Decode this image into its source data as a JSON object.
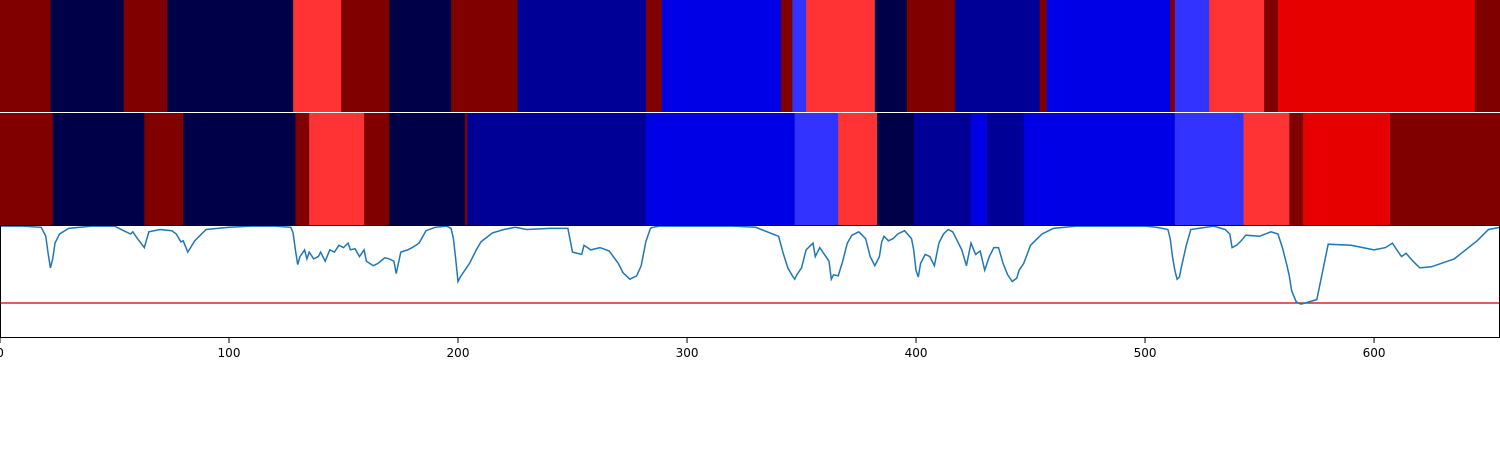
{
  "chart_data": {
    "type": "heatmap",
    "title": "",
    "xlabel": "",
    "ylabel": "",
    "xlim": [
      0,
      655
    ],
    "grid": false,
    "legend": "none",
    "x_ticks": [
      0,
      100,
      200,
      300,
      400,
      500,
      600
    ],
    "x_tick_labels": [
      "0",
      "100",
      "200",
      "300",
      "400",
      "500",
      "600"
    ],
    "palette": {
      "dark-red": "#800000",
      "navy": "#000048",
      "bright-red": "#ff3333",
      "dark-blue": "#000096",
      "blue": "#0000e6",
      "light-blue": "#3333ff",
      "red": "#e60000"
    },
    "segment_bars": [
      {
        "segments": [
          {
            "start": 0,
            "end": 22,
            "color": "dark-red"
          },
          {
            "start": 22,
            "end": 54,
            "color": "navy"
          },
          {
            "start": 54,
            "end": 73,
            "color": "dark-red"
          },
          {
            "start": 73,
            "end": 128,
            "color": "navy"
          },
          {
            "start": 128,
            "end": 149,
            "color": "bright-red"
          },
          {
            "start": 149,
            "end": 170,
            "color": "dark-red"
          },
          {
            "start": 170,
            "end": 197,
            "color": "navy"
          },
          {
            "start": 197,
            "end": 226,
            "color": "dark-red"
          },
          {
            "start": 226,
            "end": 282,
            "color": "dark-blue"
          },
          {
            "start": 282,
            "end": 289,
            "color": "dark-red"
          },
          {
            "start": 289,
            "end": 341,
            "color": "blue"
          },
          {
            "start": 341,
            "end": 346,
            "color": "dark-red"
          },
          {
            "start": 346,
            "end": 352,
            "color": "light-blue"
          },
          {
            "start": 352,
            "end": 382,
            "color": "bright-red"
          },
          {
            "start": 382,
            "end": 396,
            "color": "navy"
          },
          {
            "start": 396,
            "end": 417,
            "color": "dark-red"
          },
          {
            "start": 417,
            "end": 454,
            "color": "dark-blue"
          },
          {
            "start": 454,
            "end": 457,
            "color": "dark-red"
          },
          {
            "start": 457,
            "end": 511,
            "color": "blue"
          },
          {
            "start": 511,
            "end": 513,
            "color": "dark-red"
          },
          {
            "start": 513,
            "end": 528,
            "color": "light-blue"
          },
          {
            "start": 528,
            "end": 552,
            "color": "bright-red"
          },
          {
            "start": 552,
            "end": 558,
            "color": "dark-red"
          },
          {
            "start": 558,
            "end": 644,
            "color": "red"
          },
          {
            "start": 644,
            "end": 655,
            "color": "dark-red"
          }
        ]
      },
      {
        "segments": [
          {
            "start": 0,
            "end": 23,
            "color": "dark-red"
          },
          {
            "start": 23,
            "end": 63,
            "color": "navy"
          },
          {
            "start": 63,
            "end": 80,
            "color": "dark-red"
          },
          {
            "start": 80,
            "end": 129,
            "color": "navy"
          },
          {
            "start": 129,
            "end": 135,
            "color": "dark-red"
          },
          {
            "start": 135,
            "end": 159,
            "color": "bright-red"
          },
          {
            "start": 159,
            "end": 170,
            "color": "dark-red"
          },
          {
            "start": 170,
            "end": 203,
            "color": "navy"
          },
          {
            "start": 203,
            "end": 204,
            "color": "dark-red"
          },
          {
            "start": 204,
            "end": 282,
            "color": "dark-blue"
          },
          {
            "start": 282,
            "end": 347,
            "color": "blue"
          },
          {
            "start": 347,
            "end": 366,
            "color": "light-blue"
          },
          {
            "start": 366,
            "end": 383,
            "color": "bright-red"
          },
          {
            "start": 383,
            "end": 399,
            "color": "navy"
          },
          {
            "start": 399,
            "end": 424,
            "color": "dark-blue"
          },
          {
            "start": 424,
            "end": 431,
            "color": "blue"
          },
          {
            "start": 431,
            "end": 447,
            "color": "dark-blue"
          },
          {
            "start": 447,
            "end": 513,
            "color": "blue"
          },
          {
            "start": 513,
            "end": 543,
            "color": "light-blue"
          },
          {
            "start": 543,
            "end": 563,
            "color": "bright-red"
          },
          {
            "start": 563,
            "end": 569,
            "color": "dark-red"
          },
          {
            "start": 569,
            "end": 607,
            "color": "red"
          },
          {
            "start": 607,
            "end": 655,
            "color": "dark-red"
          }
        ]
      }
    ],
    "line_panel": {
      "series_color": "#1f77b4",
      "ylim": [
        0,
        1
      ],
      "threshold": 0.31,
      "threshold_color": "#d62728",
      "x": [
        0,
        10,
        18,
        20,
        21,
        22,
        23,
        24,
        26,
        30,
        40,
        50,
        54,
        57,
        58,
        60,
        63,
        65,
        70,
        75,
        77,
        79,
        80,
        82,
        85,
        90,
        100,
        110,
        120,
        127,
        128,
        129,
        130,
        131,
        133,
        134,
        135,
        137,
        139,
        140,
        142,
        144,
        146,
        148,
        150,
        152,
        153,
        155,
        157,
        159,
        160,
        163,
        165,
        168,
        170,
        172,
        173,
        175,
        178,
        180,
        183,
        186,
        190,
        195,
        197,
        198,
        199,
        200,
        201,
        203,
        205,
        208,
        210,
        215,
        220,
        225,
        230,
        240,
        248,
        250,
        254,
        255,
        258,
        262,
        266,
        270,
        272,
        275,
        278,
        280,
        282,
        284,
        285,
        288,
        290,
        300,
        310,
        320,
        330,
        335,
        340,
        342,
        344,
        346,
        347,
        348,
        350,
        352,
        355,
        356,
        358,
        360,
        362,
        363,
        364,
        366,
        368,
        370,
        372,
        375,
        378,
        380,
        382,
        384,
        385,
        386,
        388,
        390,
        392,
        395,
        398,
        399,
        400,
        401,
        402,
        404,
        406,
        408,
        410,
        412,
        414,
        416,
        418,
        420,
        422,
        424,
        426,
        428,
        430,
        432,
        434,
        436,
        438,
        440,
        442,
        444,
        445,
        447,
        450,
        455,
        460,
        470,
        480,
        490,
        500,
        505,
        510,
        511,
        512,
        513,
        514,
        515,
        516,
        518,
        520,
        530,
        535,
        537,
        538,
        540,
        542,
        544,
        550,
        555,
        558,
        560,
        562,
        563,
        564,
        565,
        566,
        568,
        570,
        575,
        580,
        590,
        600,
        605,
        608,
        610,
        612,
        614,
        617,
        620,
        625,
        635,
        645,
        650,
        655
      ],
      "y": [
        0.99,
        0.99,
        0.98,
        0.9,
        0.75,
        0.62,
        0.7,
        0.84,
        0.92,
        0.97,
        0.99,
        0.99,
        0.95,
        0.92,
        0.94,
        0.88,
        0.8,
        0.94,
        0.96,
        0.95,
        0.92,
        0.85,
        0.86,
        0.76,
        0.86,
        0.96,
        0.98,
        0.99,
        0.99,
        0.98,
        0.93,
        0.78,
        0.65,
        0.72,
        0.78,
        0.7,
        0.76,
        0.7,
        0.72,
        0.76,
        0.68,
        0.78,
        0.76,
        0.82,
        0.8,
        0.84,
        0.78,
        0.79,
        0.72,
        0.78,
        0.68,
        0.64,
        0.66,
        0.71,
        0.7,
        0.68,
        0.57,
        0.76,
        0.78,
        0.8,
        0.84,
        0.95,
        0.98,
        0.99,
        0.97,
        0.88,
        0.7,
        0.5,
        0.54,
        0.6,
        0.66,
        0.78,
        0.85,
        0.93,
        0.96,
        0.98,
        0.96,
        0.97,
        0.97,
        0.76,
        0.74,
        0.82,
        0.78,
        0.8,
        0.77,
        0.66,
        0.58,
        0.52,
        0.55,
        0.64,
        0.85,
        0.97,
        0.98,
        0.99,
        0.99,
        0.99,
        0.99,
        0.99,
        0.98,
        0.94,
        0.9,
        0.75,
        0.62,
        0.55,
        0.52,
        0.56,
        0.62,
        0.78,
        0.84,
        0.72,
        0.8,
        0.74,
        0.68,
        0.52,
        0.56,
        0.55,
        0.68,
        0.84,
        0.91,
        0.94,
        0.88,
        0.72,
        0.64,
        0.72,
        0.85,
        0.9,
        0.86,
        0.88,
        0.92,
        0.95,
        0.88,
        0.78,
        0.6,
        0.54,
        0.66,
        0.74,
        0.72,
        0.64,
        0.84,
        0.92,
        0.96,
        0.94,
        0.86,
        0.78,
        0.64,
        0.84,
        0.74,
        0.77,
        0.6,
        0.72,
        0.8,
        0.8,
        0.66,
        0.56,
        0.5,
        0.53,
        0.6,
        0.66,
        0.82,
        0.92,
        0.97,
        0.99,
        0.99,
        0.99,
        0.99,
        0.98,
        0.96,
        0.88,
        0.72,
        0.6,
        0.52,
        0.54,
        0.64,
        0.82,
        0.96,
        0.99,
        0.96,
        0.92,
        0.8,
        0.82,
        0.86,
        0.91,
        0.9,
        0.94,
        0.92,
        0.8,
        0.64,
        0.55,
        0.42,
        0.37,
        0.32,
        0.3,
        0.31,
        0.34,
        0.83,
        0.82,
        0.78,
        0.8,
        0.84,
        0.78,
        0.72,
        0.75,
        0.68,
        0.62,
        0.63,
        0.7,
        0.86,
        0.96,
        0.98,
        0.98,
        0.97
      ]
    }
  }
}
